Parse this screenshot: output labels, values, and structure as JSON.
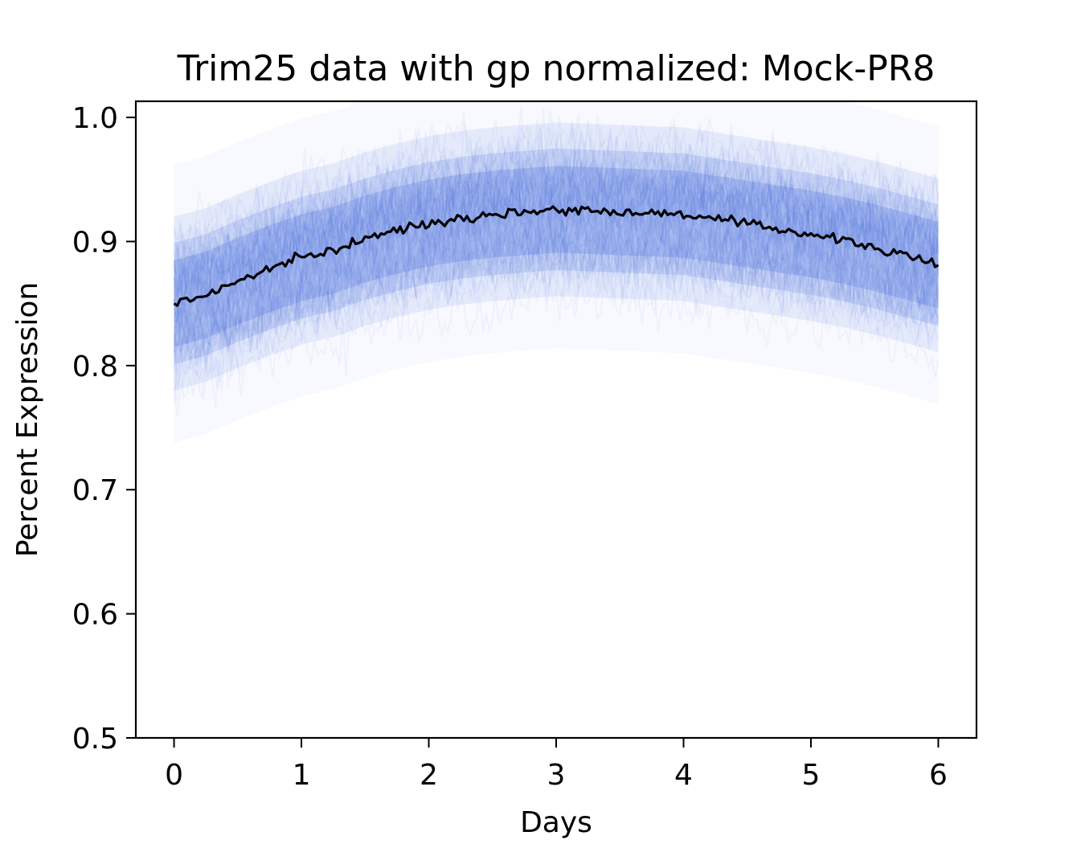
{
  "chart_data": {
    "type": "line",
    "title": "Trim25 data with gp normalized: Mock-PR8",
    "xlabel": "Days",
    "ylabel": "Percent Expression",
    "xlim": [
      -0.3,
      6.3
    ],
    "ylim": [
      0.5,
      1.013
    ],
    "x_ticks": [
      0,
      1,
      2,
      3,
      4,
      5,
      6
    ],
    "x_tick_labels": [
      "0",
      "1",
      "2",
      "3",
      "4",
      "5",
      "6"
    ],
    "y_ticks": [
      0.5,
      0.6,
      0.7,
      0.8,
      0.9,
      1.0
    ],
    "y_tick_labels": [
      "0.5",
      "0.6",
      "0.7",
      "0.8",
      "0.9",
      "1.0"
    ],
    "grid": false,
    "legend": "none",
    "mean_series": {
      "color": "#000000",
      "x": [
        0,
        0.25,
        0.5,
        0.75,
        1.0,
        1.25,
        1.5,
        1.75,
        2.0,
        2.25,
        2.5,
        2.75,
        3.0,
        3.25,
        3.5,
        3.75,
        4.0,
        4.25,
        4.5,
        4.75,
        5.0,
        5.25,
        5.5,
        5.75,
        6.0
      ],
      "y": [
        0.85,
        0.857,
        0.868,
        0.878,
        0.887,
        0.893,
        0.902,
        0.909,
        0.915,
        0.919,
        0.922,
        0.924,
        0.926,
        0.925,
        0.924,
        0.923,
        0.922,
        0.918,
        0.914,
        0.91,
        0.906,
        0.901,
        0.895,
        0.888,
        0.881
      ]
    },
    "spread_series": {
      "color": "#4169e1",
      "inner_half_width": 0.035,
      "outer_half_width": 0.07
    }
  }
}
